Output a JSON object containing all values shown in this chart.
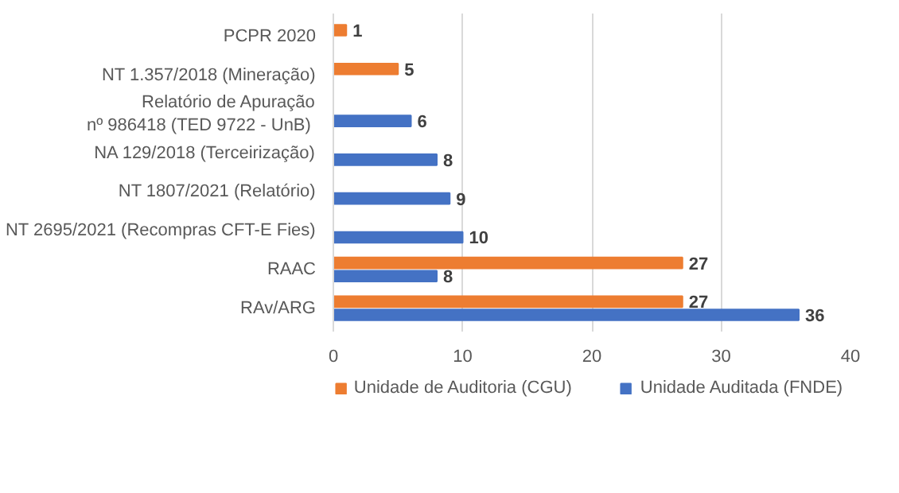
{
  "chart_data": {
    "type": "bar",
    "orientation": "horizontal",
    "categories": [
      "PCPR 2020",
      "NT 1.357/2018 (Mineração)",
      "Relatório de Apuração\nnº  986418 (TED 9722 - UnB)",
      "NA 129/2018 (Terceirização)",
      "NT 1807/2021 (Relatório)",
      "NT 2695/2021 (Recompras CFT-E Fies)",
      "RAAC",
      "RAv/ARG"
    ],
    "series": [
      {
        "name": "Unidade de Auditoria (CGU)",
        "color": "#ed7d31",
        "values": [
          1,
          5,
          null,
          null,
          null,
          null,
          27,
          27
        ]
      },
      {
        "name": "Unidade Auditada (FNDE)",
        "color": "#4472c4",
        "values": [
          null,
          null,
          6,
          8,
          9,
          10,
          8,
          36
        ]
      }
    ],
    "xlim": [
      0,
      40
    ],
    "xticks": [
      0,
      10,
      20,
      30,
      40
    ],
    "grid": "x",
    "legend": "bottom",
    "data_labels": true
  }
}
